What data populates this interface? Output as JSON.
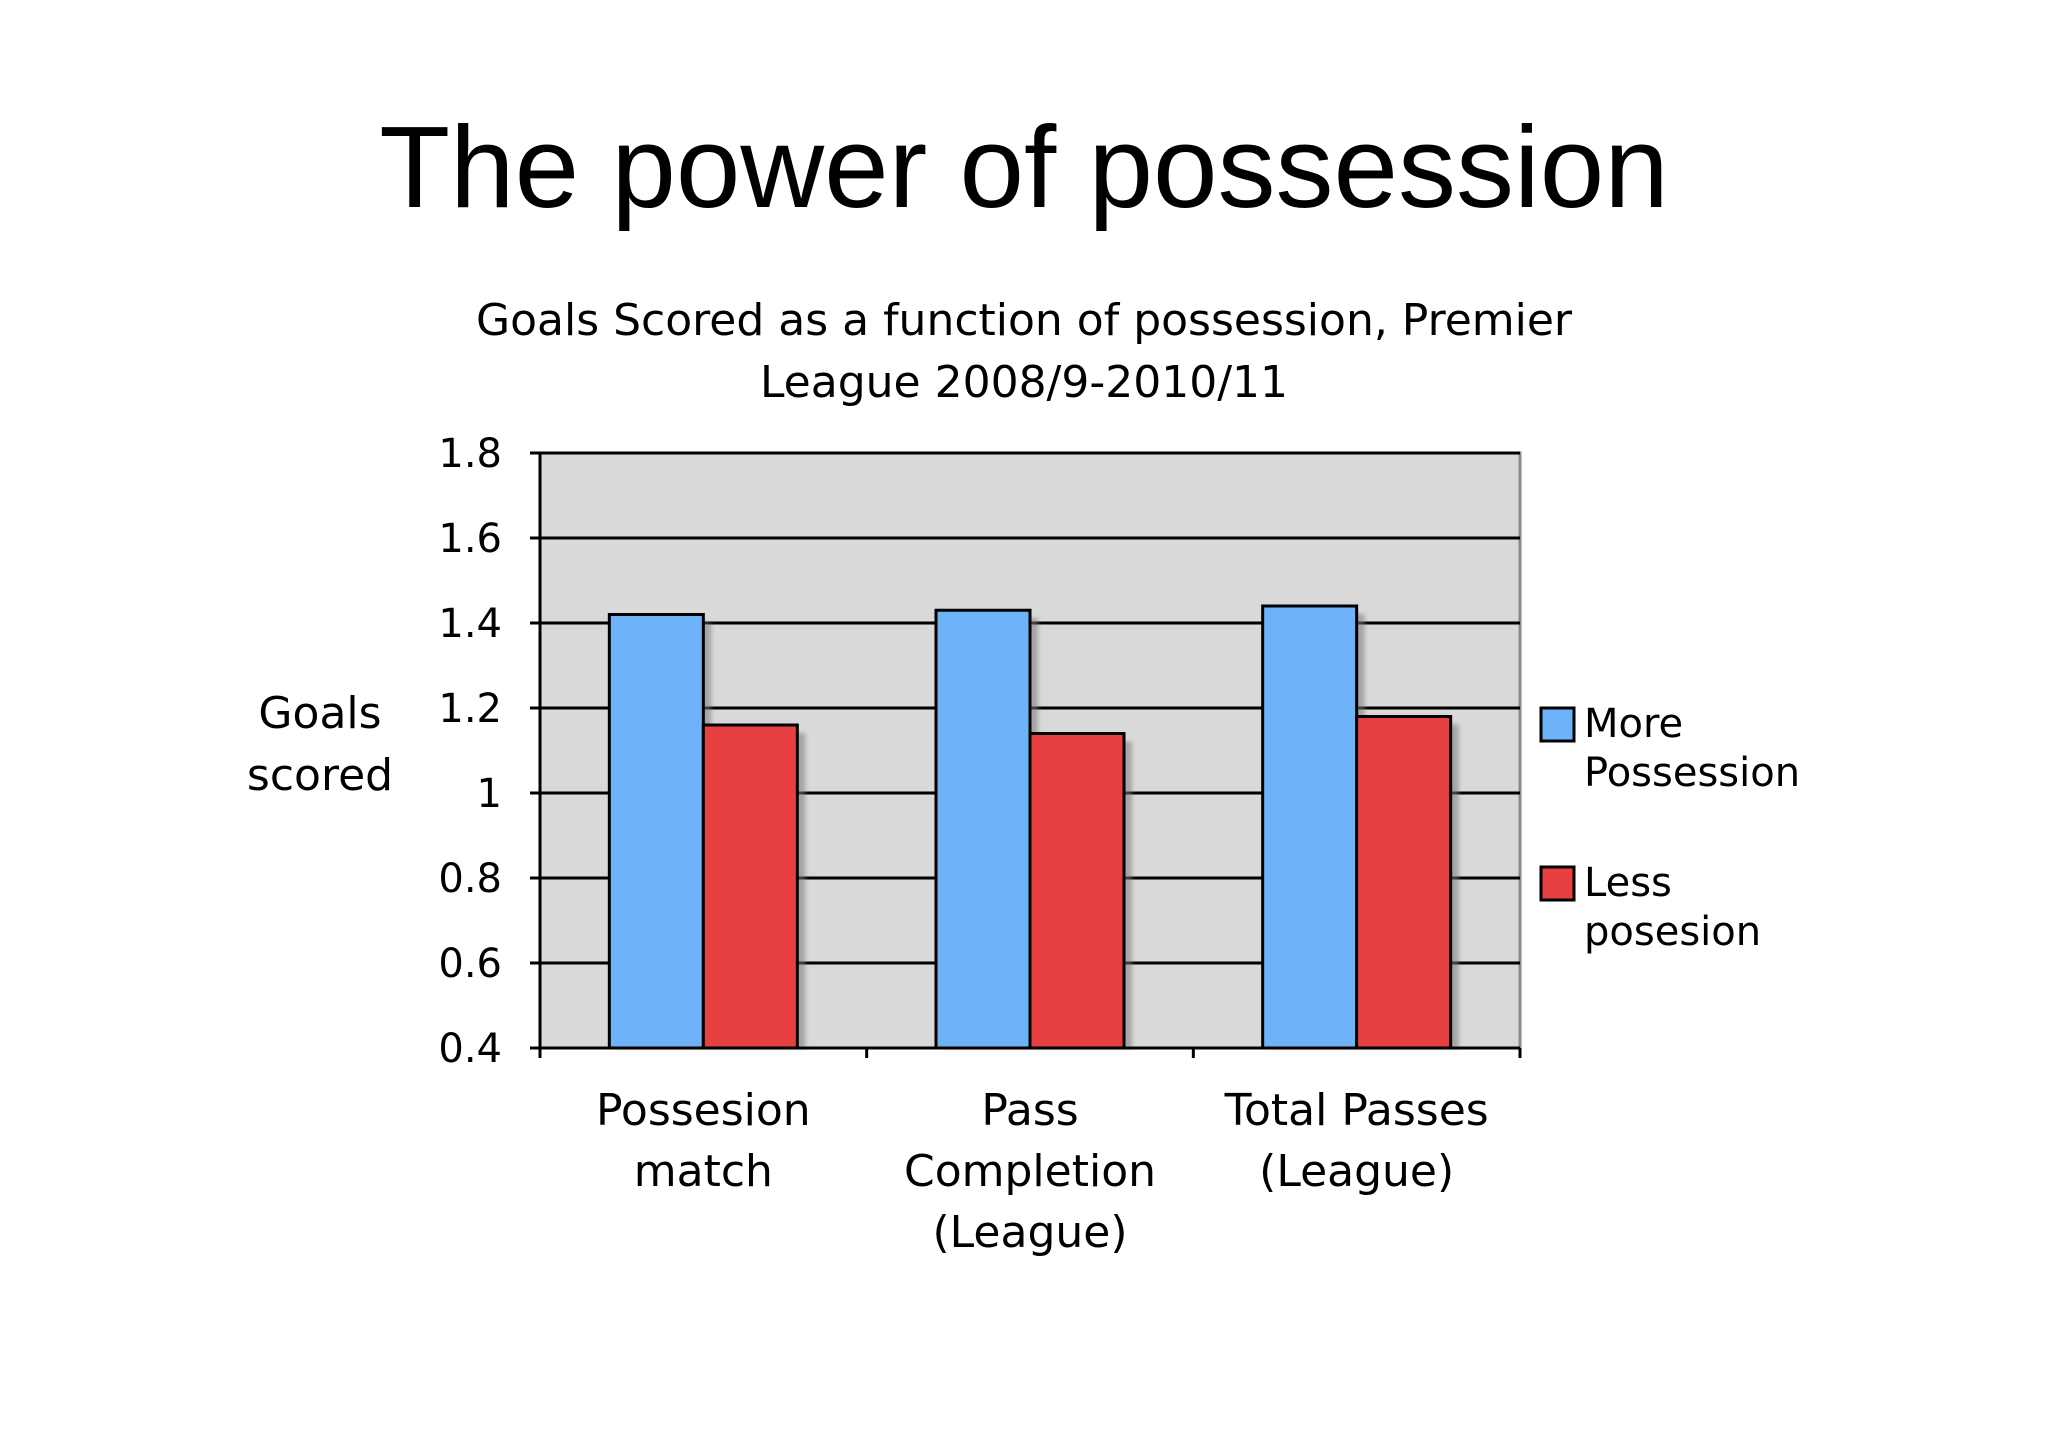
{
  "slide": {
    "title": "The power of possession"
  },
  "chart_data": {
    "type": "bar",
    "title_lines": [
      "Goals Scored as a function of possession, Premier",
      "League 2008/9-2010/11"
    ],
    "ylabel_lines": [
      "Goals",
      "scored"
    ],
    "xlabel": "",
    "categories": [
      [
        "Possesion",
        "match"
      ],
      [
        "Pass",
        "Completion",
        "(League)"
      ],
      [
        "Total Passes",
        "(League)"
      ]
    ],
    "series": [
      {
        "name_lines": [
          "More",
          "Possession"
        ],
        "color": "#6eb3fa",
        "values": [
          1.42,
          1.43,
          1.44
        ]
      },
      {
        "name_lines": [
          "Less",
          "posesion"
        ],
        "color": "#e84040",
        "values": [
          1.16,
          1.14,
          1.18
        ]
      }
    ],
    "ylim": [
      0.4,
      1.8
    ],
    "yticks": [
      "0.4",
      "0.6",
      "0.8",
      "1",
      "1.2",
      "1.4",
      "1.6",
      "1.8"
    ],
    "grid": true,
    "plot_background": "#d9d9d9",
    "legend_position": "right"
  }
}
